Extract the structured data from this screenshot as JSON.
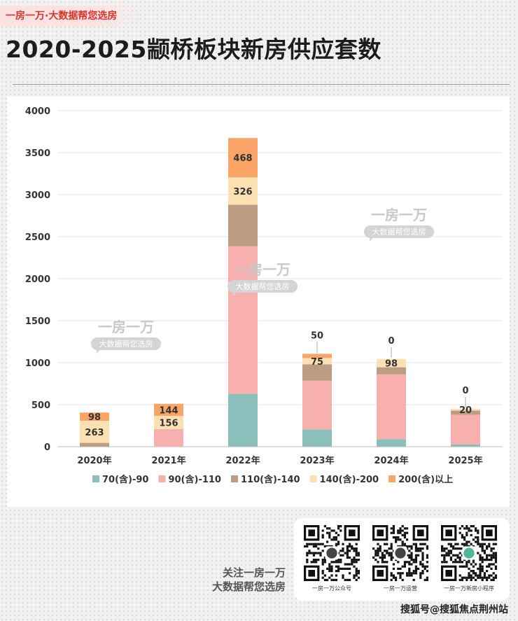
{
  "header": {
    "tag": "一房一万·大数据帮您选房",
    "title": "2020-2025颛桥板块新房供应套数"
  },
  "colors": {
    "70(含)-90": "#8bbfbb",
    "90(含)-110": "#f7b0ad",
    "110(含)-140": "#bc9c83",
    "140(含)-200": "#fbe0b2",
    "200(含)以上": "#fba468"
  },
  "watermark": {
    "line1": "一房一万",
    "line2": "大数据帮您选房"
  },
  "chart_data": {
    "type": "bar",
    "stacked": true,
    "categories": [
      "2020年",
      "2021年",
      "2022年",
      "2023年",
      "2024年",
      "2025年"
    ],
    "ylim": [
      0,
      4000
    ],
    "yticks": [
      0,
      500,
      1000,
      1500,
      2000,
      2500,
      3000,
      3500,
      4000
    ],
    "grid": true,
    "legend_position": "bottom",
    "series": [
      {
        "name": "70(含)-90",
        "values": [
          0,
          0,
          630,
          205,
          90,
          25
        ]
      },
      {
        "name": "90(含)-110",
        "values": [
          0,
          210,
          1755,
          580,
          770,
          355
        ]
      },
      {
        "name": "110(含)-140",
        "values": [
          45,
          0,
          495,
          195,
          85,
          50
        ]
      },
      {
        "name": "140(含)-200",
        "values": [
          263,
          156,
          326,
          75,
          98,
          20
        ]
      },
      {
        "name": "200(含)以上",
        "values": [
          98,
          144,
          468,
          50,
          0,
          0
        ]
      }
    ],
    "labels": [
      {
        "bar": 0,
        "series": 3,
        "text": "263"
      },
      {
        "bar": 0,
        "series": 4,
        "text": "98"
      },
      {
        "bar": 1,
        "series": 3,
        "text": "156"
      },
      {
        "bar": 1,
        "series": 4,
        "text": "144"
      },
      {
        "bar": 2,
        "series": 3,
        "text": "326"
      },
      {
        "bar": 2,
        "series": 4,
        "text": "468"
      },
      {
        "bar": 3,
        "series": 3,
        "text": "75"
      },
      {
        "bar": 3,
        "series": 4,
        "text": "50",
        "above": true
      },
      {
        "bar": 4,
        "series": 3,
        "text": "98"
      },
      {
        "bar": 4,
        "series": 4,
        "text": "0",
        "above": true
      },
      {
        "bar": 5,
        "series": 3,
        "text": "20"
      },
      {
        "bar": 5,
        "series": 4,
        "text": "0",
        "above": true
      }
    ]
  },
  "footer": {
    "follow_line1": "关注一房一万",
    "follow_line2": "大数据帮您选房",
    "qr": [
      {
        "label": "一房一万公众号"
      },
      {
        "label": "一房一万运营"
      },
      {
        "label": "一房一万新房小程序"
      }
    ],
    "source": "搜狐号@搜狐焦点荆州站"
  }
}
